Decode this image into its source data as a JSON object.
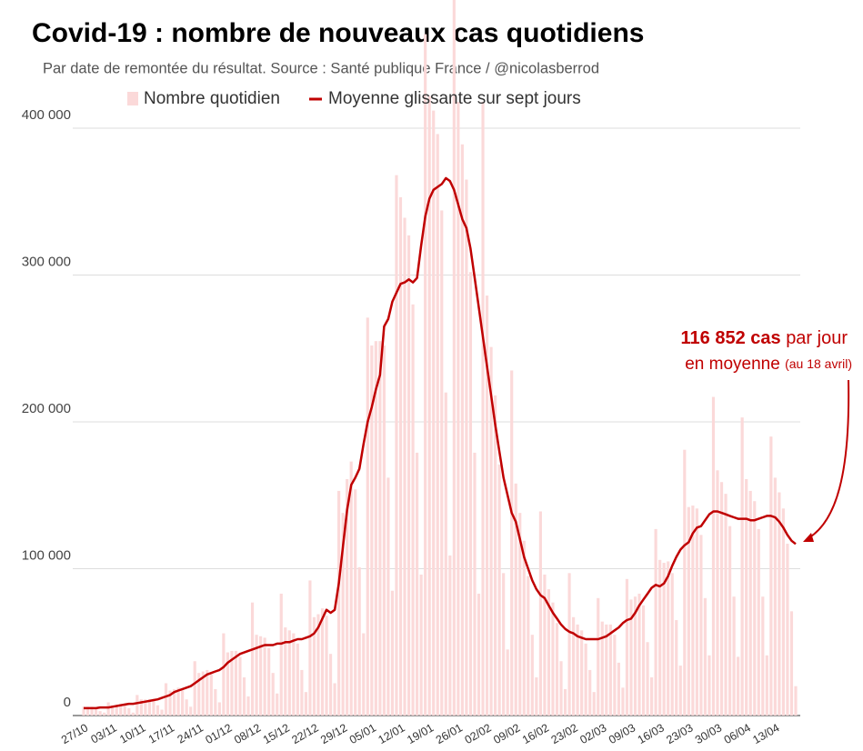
{
  "chart_data": {
    "type": "bar-line",
    "title": "Covid-19 : nombre de nouveaux cas quotidiens",
    "subtitle": "Par date de remontée du résultat. Source : Santé publique France / @nicolasberrod",
    "annotation": {
      "value": "116 852 cas",
      "text1": "par jour",
      "text2": "en moyenne",
      "text3": "(au 18 avril)"
    },
    "categories": [
      "27/10",
      null,
      null,
      null,
      null,
      null,
      null,
      "03/11",
      null,
      null,
      null,
      null,
      null,
      null,
      "10/11",
      null,
      null,
      null,
      null,
      null,
      null,
      "17/11",
      null,
      null,
      null,
      null,
      null,
      null,
      "24/11",
      null,
      null,
      null,
      null,
      null,
      null,
      "01/12",
      null,
      null,
      null,
      null,
      null,
      null,
      "08/12",
      null,
      null,
      null,
      null,
      null,
      null,
      "15/12",
      null,
      null,
      null,
      null,
      null,
      null,
      "22/12",
      null,
      null,
      null,
      null,
      null,
      null,
      "29/12",
      null,
      null,
      null,
      null,
      null,
      null,
      "05/01",
      null,
      null,
      null,
      null,
      null,
      null,
      "12/01",
      null,
      null,
      null,
      null,
      null,
      null,
      "19/01",
      null,
      null,
      null,
      null,
      null,
      null,
      "26/01",
      null,
      null,
      null,
      null,
      null,
      null,
      "02/02",
      null,
      null,
      null,
      null,
      null,
      null,
      "09/02",
      null,
      null,
      null,
      null,
      null,
      null,
      "16/02",
      null,
      null,
      null,
      null,
      null,
      null,
      "23/02",
      null,
      null,
      null,
      null,
      null,
      null,
      "02/03",
      null,
      null,
      null,
      null,
      null,
      null,
      "09/03",
      null,
      null,
      null,
      null,
      null,
      null,
      "16/03",
      null,
      null,
      null,
      null,
      null,
      null,
      "23/03",
      null,
      null,
      null,
      null,
      null,
      null,
      "30/03",
      null,
      null,
      null,
      null,
      null,
      null,
      "06/04",
      null,
      null,
      null,
      null,
      null,
      null,
      "13/04",
      null,
      null,
      null,
      null,
      null
    ],
    "series": [
      {
        "name": "Nombre quotidien",
        "color": "#fbd9d9",
        "values": [
          6000,
          6000,
          6000,
          5000,
          3000,
          2000,
          9000,
          7000,
          7000,
          8000,
          7000,
          5000,
          2000,
          14000,
          11000,
          11000,
          11000,
          10000,
          7000,
          4000,
          22000,
          17000,
          18000,
          19000,
          17000,
          11000,
          6000,
          37000,
          29000,
          30000,
          31000,
          28000,
          18000,
          9000,
          56000,
          43000,
          44000,
          44000,
          40000,
          26000,
          13000,
          77000,
          55000,
          54000,
          53000,
          46000,
          29000,
          15000,
          83000,
          60000,
          58000,
          56000,
          49000,
          31000,
          16000,
          92000,
          67000,
          69000,
          73000,
          68000,
          42000,
          22000,
          153000,
          138000,
          161000,
          173000,
          154000,
          101000,
          56000,
          271000,
          252000,
          255000,
          255000,
          252000,
          162000,
          85000,
          368000,
          353000,
          339000,
          327000,
          280000,
          179000,
          96000,
          464000,
          422000,
          412000,
          396000,
          344000,
          220000,
          109000,
          501000,
          418000,
          389000,
          365000,
          302000,
          179000,
          83000,
          418000,
          286000,
          251000,
          218000,
          171000,
          97000,
          45000,
          235000,
          158000,
          138000,
          119000,
          95000,
          55000,
          26000,
          139000,
          96000,
          86000,
          77000,
          63000,
          37000,
          18000,
          97000,
          67000,
          62000,
          58000,
          49000,
          31000,
          16000,
          80000,
          64000,
          62000,
          62000,
          55000,
          36000,
          19000,
          93000,
          79000,
          81000,
          83000,
          75000,
          50000,
          26000,
          127000,
          106000,
          104000,
          105000,
          97000,
          65000,
          34000,
          181000,
          142000,
          143000,
          141000,
          123000,
          80000,
          41000,
          217000,
          167000,
          159000,
          151000,
          129000,
          81000,
          40000,
          203000,
          161000,
          153000,
          146000,
          127000,
          81000,
          41000,
          190000,
          162000,
          152000,
          141000,
          117000,
          71000,
          20000
        ]
      },
      {
        "name": "Moyenne glissante sur sept jours",
        "color": "#c00000",
        "values": [
          5000,
          5000,
          5000,
          5000,
          5500,
          5500,
          5500,
          6000,
          6500,
          7000,
          7500,
          8000,
          8000,
          8500,
          9000,
          9500,
          10000,
          10500,
          11000,
          12000,
          13000,
          14000,
          16000,
          17000,
          18000,
          19000,
          20000,
          22000,
          24000,
          26000,
          28000,
          29000,
          30000,
          31000,
          33000,
          36000,
          38000,
          40000,
          42000,
          43000,
          44000,
          45000,
          46000,
          47000,
          48000,
          48000,
          48000,
          49000,
          49000,
          50000,
          50000,
          51000,
          52000,
          52000,
          53000,
          54000,
          56000,
          60000,
          66000,
          72000,
          70000,
          72000,
          90000,
          115000,
          140000,
          157000,
          162000,
          168000,
          185000,
          200000,
          210000,
          222000,
          232000,
          265000,
          270000,
          282000,
          288000,
          294000,
          295000,
          297000,
          295000,
          298000,
          320000,
          340000,
          352000,
          358000,
          360000,
          362000,
          366000,
          364000,
          358000,
          348000,
          338000,
          332000,
          318000,
          298000,
          278000,
          258000,
          238000,
          218000,
          198000,
          180000,
          162000,
          150000,
          138000,
          132000,
          120000,
          108000,
          100000,
          92000,
          86000,
          82000,
          80000,
          75000,
          70000,
          66000,
          62000,
          59000,
          57000,
          56000,
          54000,
          53000,
          52000,
          52000,
          52000,
          52000,
          53000,
          54000,
          56000,
          58000,
          60000,
          63000,
          65000,
          66000,
          70000,
          75000,
          79000,
          83000,
          87000,
          89000,
          88000,
          90000,
          95000,
          102000,
          108000,
          113000,
          116000,
          118000,
          124000,
          128000,
          129000,
          133000,
          137000,
          139000,
          139000,
          138000,
          137000,
          136000,
          135000,
          134000,
          134000,
          134000,
          133000,
          133000,
          134000,
          135000,
          136000,
          136000,
          135000,
          132000,
          128000,
          123000,
          119000,
          116852
        ]
      }
    ],
    "ylim": [
      0,
      420000
    ],
    "yticks": [
      0,
      {
        "value": 100000,
        "label": "100 000"
      },
      {
        "value": 200000,
        "label": "200 000"
      },
      {
        "value": 300000,
        "label": "300 000"
      },
      {
        "value": 400000,
        "label": "400 000"
      }
    ],
    "grid": true
  }
}
